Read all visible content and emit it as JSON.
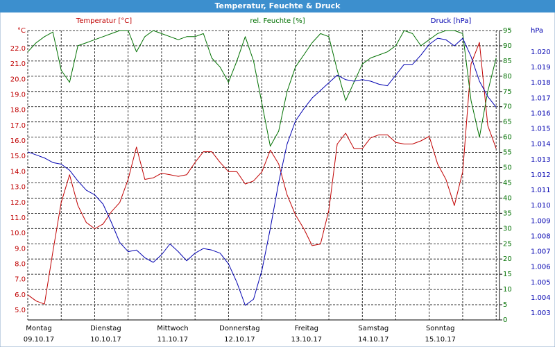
{
  "chart_data": {
    "type": "line",
    "title": "Temperatur, Feuchte & Druck",
    "y_unit": "°C",
    "y3_unit": "hPa",
    "x": [
      0,
      0.125,
      0.25,
      0.375,
      0.5,
      0.625,
      0.75,
      0.875,
      1,
      1.125,
      1.25,
      1.375,
      1.5,
      1.625,
      1.75,
      1.875,
      2,
      2.125,
      2.25,
      2.375,
      2.5,
      2.625,
      2.75,
      2.875,
      3,
      3.125,
      3.25,
      3.375,
      3.5,
      3.625,
      3.75,
      3.875,
      4,
      4.125,
      4.25,
      4.375,
      4.5,
      4.625,
      4.75,
      4.875,
      5,
      5.125,
      5.25,
      5.375,
      5.5,
      5.625,
      5.75,
      5.875,
      6,
      6.125,
      6.25,
      6.375,
      6.5,
      6.625,
      6.75,
      6.875,
      7
    ],
    "xlim": [
      0,
      7.05
    ],
    "xticks": [
      {
        "value": 0,
        "label": "Montag",
        "date": "09.10.17"
      },
      {
        "value": 1,
        "label": "Dienstag",
        "date": "10.10.17"
      },
      {
        "value": 2,
        "label": "Mittwoch",
        "date": "11.10.17"
      },
      {
        "value": 3,
        "label": "Donnerstag",
        "date": "12.10.17"
      },
      {
        "value": 4,
        "label": "Freitag",
        "date": "13.10.17"
      },
      {
        "value": 5,
        "label": "Samstag",
        "date": "14.10.17"
      },
      {
        "value": 6,
        "label": "Sonntag",
        "date": "15.10.17"
      }
    ],
    "xgrid": [
      0,
      0.5,
      1,
      1.5,
      2,
      2.5,
      3,
      3.5,
      4,
      4.5,
      5,
      5.5,
      6,
      6.5,
      7
    ],
    "ylim": [
      4.37,
      23.17
    ],
    "yticks": [
      {
        "value": 5,
        "label": "5.0"
      },
      {
        "value": 6,
        "label": "6.0"
      },
      {
        "value": 7,
        "label": "7.0"
      },
      {
        "value": 8,
        "label": "8.0"
      },
      {
        "value": 9,
        "label": "9.0"
      },
      {
        "value": 10,
        "label": "10.0"
      },
      {
        "value": 11,
        "label": "11.0"
      },
      {
        "value": 12,
        "label": "12.0"
      },
      {
        "value": 13,
        "label": "13.0"
      },
      {
        "value": 14,
        "label": "14.0"
      },
      {
        "value": 15,
        "label": "15.0"
      },
      {
        "value": 16,
        "label": "16.0"
      },
      {
        "value": 17,
        "label": "17.0"
      },
      {
        "value": 18,
        "label": "18.0"
      },
      {
        "value": 19,
        "label": "19.0"
      },
      {
        "value": 20,
        "label": "20.0"
      },
      {
        "value": 21,
        "label": "21.0"
      },
      {
        "value": 22,
        "label": "22.0"
      }
    ],
    "y2lim": [
      0,
      95
    ],
    "y2ticks": [
      0,
      5,
      10,
      15,
      20,
      25,
      30,
      35,
      40,
      45,
      50,
      55,
      60,
      65,
      70,
      75,
      80,
      85,
      90,
      95
    ],
    "y3lim": [
      1.00255,
      1.0214
    ],
    "y3ticks": [
      1.003,
      1.004,
      1.005,
      1.006,
      1.007,
      1.008,
      1.009,
      {
        "value": 1.01,
        "label": "1.010"
      },
      1.011,
      1.012,
      1.013,
      1.014,
      1.015,
      1.016,
      1.017,
      1.018,
      1.019,
      {
        "value": 1.02,
        "label": "1.020"
      }
    ],
    "grid": true,
    "series": [
      {
        "name": "Temperatur [°C]",
        "color": "#c00000",
        "axis": "y",
        "values": [
          6.0,
          5.6,
          5.4,
          8.8,
          12.0,
          13.8,
          11.8,
          10.7,
          10.3,
          10.6,
          11.4,
          12.0,
          13.5,
          15.6,
          13.5,
          13.6,
          13.9,
          13.8,
          13.7,
          13.8,
          14.6,
          15.3,
          15.3,
          14.6,
          14.0,
          14.0,
          13.2,
          13.4,
          14.0,
          15.4,
          14.5,
          12.5,
          11.2,
          10.3,
          9.2,
          9.3,
          11.5,
          15.8,
          16.5,
          15.5,
          15.5,
          16.2,
          16.4,
          16.4,
          15.9,
          15.8,
          15.8,
          16.0,
          16.3,
          14.5,
          13.5,
          11.8,
          14.0,
          21.0,
          22.4,
          17.0,
          15.5
        ]
      },
      {
        "name": "rel. Feuchte [%]",
        "color": "#007000",
        "axis": "y2",
        "values": [
          88,
          91,
          93,
          94.5,
          82,
          78,
          90,
          91,
          92,
          93,
          94,
          95,
          95,
          88,
          93,
          95,
          94,
          93,
          92,
          93,
          93,
          94,
          86,
          83,
          78,
          85,
          93,
          85,
          71,
          57,
          62,
          75,
          83,
          87,
          91,
          94,
          93,
          82,
          72,
          78,
          84,
          86,
          87,
          88,
          90,
          95,
          94,
          90,
          92,
          94,
          95,
          95,
          94,
          72,
          60,
          75,
          86
        ]
      },
      {
        "name": "Druck [hPa]",
        "color": "#0000b0",
        "axis": "y3",
        "values": [
          1.0135,
          1.0133,
          1.0131,
          1.0128,
          1.0127,
          1.0123,
          1.0116,
          1.011,
          1.0107,
          1.0101,
          1.0089,
          1.0076,
          1.007,
          1.0071,
          1.0066,
          1.0063,
          1.0068,
          1.0075,
          1.007,
          1.0064,
          1.0069,
          1.0072,
          1.0071,
          1.0069,
          1.0062,
          1.005,
          1.0035,
          1.0039,
          1.0058,
          1.0085,
          1.0115,
          1.014,
          1.0155,
          1.0163,
          1.017,
          1.0175,
          1.018,
          1.0185,
          1.0182,
          1.0181,
          1.0182,
          1.0181,
          1.0179,
          1.0178,
          1.0185,
          1.0192,
          1.0192,
          1.0198,
          1.0205,
          1.0209,
          1.0208,
          1.0204,
          1.0209,
          1.0197,
          1.0181,
          1.0171,
          1.0164
        ]
      }
    ]
  }
}
